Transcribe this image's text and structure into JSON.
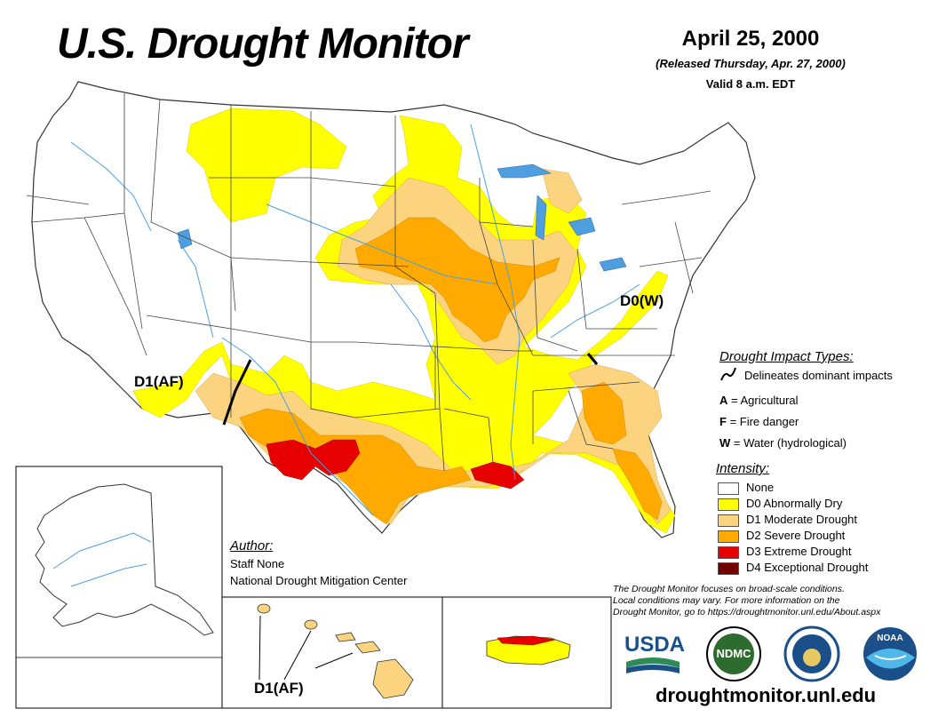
{
  "header": {
    "title": "U.S. Drought Monitor",
    "date": "April 25, 2000",
    "released": "(Released Thursday, Apr. 27, 2000)",
    "valid": "Valid 8 a.m. EDT"
  },
  "map_labels": {
    "d0w": "D0(W)",
    "d1af_west": "D1(AF)",
    "d1af_hawaii": "D1(AF)"
  },
  "impact_types": {
    "heading": "Drought Impact Types:",
    "delineates": "Delineates dominant impacts",
    "a_key": "A",
    "a_label": " = Agricultural",
    "f_key": "F",
    "f_label": " = Fire danger",
    "w_key": "W",
    "w_label": " = Water (hydrological)"
  },
  "intensity": {
    "heading": "Intensity:",
    "items": [
      {
        "label": "None",
        "color": "#ffffff"
      },
      {
        "label": "D0 Abnormally Dry",
        "color": "#ffff00"
      },
      {
        "label": "D1 Moderate Drought",
        "color": "#fcd37f"
      },
      {
        "label": "D2 Severe Drought",
        "color": "#ffaa00"
      },
      {
        "label": "D3 Extreme Drought",
        "color": "#e60000"
      },
      {
        "label": "D4 Exceptional Drought",
        "color": "#730000"
      }
    ]
  },
  "author": {
    "heading": "Author:",
    "name": "Staff None",
    "org": "National Drought Mitigation Center"
  },
  "disclaimer": {
    "line1": "The Drought Monitor focuses on broad-scale conditions.",
    "line2": "Local conditions may vary. For more information on the",
    "line3": "Drought Monitor, go to https://droughtmonitor.unl.edu/About.aspx"
  },
  "logos": {
    "usda": "USDA",
    "ndmc": "NDMC",
    "noaa": "NOAA"
  },
  "footer": {
    "url": "droughtmonitor.unl.edu"
  },
  "colors": {
    "d0": "#ffff00",
    "d1": "#fcd37f",
    "d2": "#ffaa00",
    "d3": "#e60000",
    "water": "#4f9ee0",
    "boundary": "#444444"
  }
}
